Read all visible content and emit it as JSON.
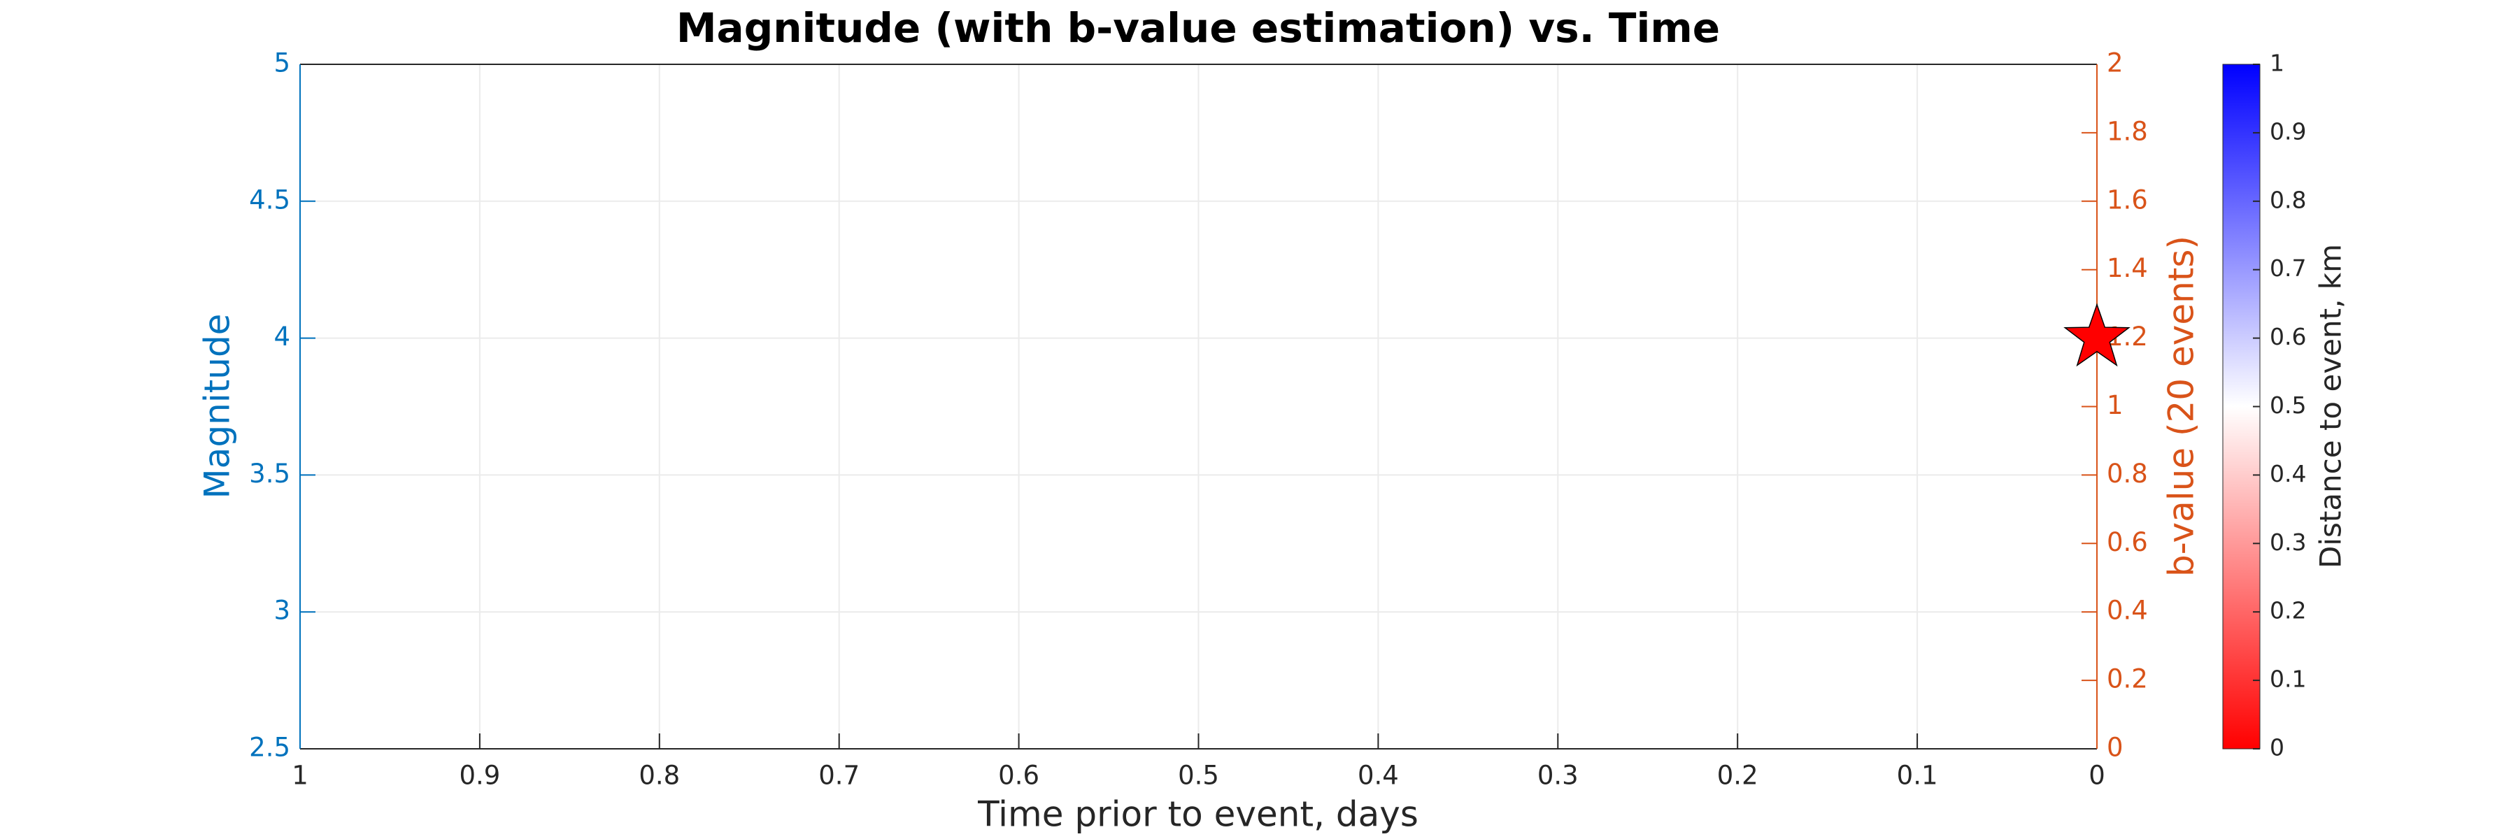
{
  "chart_data": {
    "type": "scatter",
    "title": "Magnitude (with b-value estimation) vs. Time",
    "x_label": "Time prior to event, days",
    "y_label": "Magnitude",
    "y2_label": "b-value (20 events)",
    "x": [
      0
    ],
    "series": [
      {
        "color": "#ff0000",
        "marker": "star",
        "values": [
          4
        ]
      }
    ],
    "xlim": [
      1,
      0
    ],
    "xticks": [
      1,
      0.9,
      0.8,
      0.7,
      0.6,
      0.5,
      0.4,
      0.3,
      0.2,
      0.1,
      0
    ],
    "ylim": [
      2.5,
      5
    ],
    "yticks": [
      2.5,
      3,
      3.5,
      4,
      4.5,
      5
    ],
    "y2lim": [
      0,
      2
    ],
    "y2ticks": [
      0,
      0.2,
      0.4,
      0.6,
      0.8,
      1,
      1.2,
      1.4,
      1.6,
      1.8,
      2
    ],
    "y_color": "#0072bd",
    "y2_color": "#d95319",
    "grid": true,
    "colorbar": {
      "label": "Distance to event, km",
      "lim": [
        0,
        1
      ],
      "ticks": [
        0,
        0.1,
        0.2,
        0.3,
        0.4,
        0.5,
        0.6,
        0.7,
        0.8,
        0.9,
        1
      ],
      "colors": [
        "#ff0000",
        "#ffffff",
        "#0000ff"
      ]
    }
  }
}
